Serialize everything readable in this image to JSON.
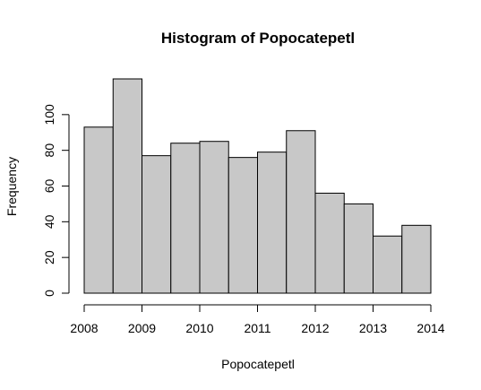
{
  "chart_data": {
    "type": "bar",
    "title": "Histogram of Popocatepetl",
    "xlabel": "Popocatepetl",
    "ylabel": "Frequency",
    "bins": [
      {
        "start": 2008.0,
        "end": 2008.5,
        "count": 93
      },
      {
        "start": 2008.5,
        "end": 2009.0,
        "count": 120
      },
      {
        "start": 2009.0,
        "end": 2009.5,
        "count": 77
      },
      {
        "start": 2009.5,
        "end": 2010.0,
        "count": 84
      },
      {
        "start": 2010.0,
        "end": 2010.5,
        "count": 85
      },
      {
        "start": 2010.5,
        "end": 2011.0,
        "count": 76
      },
      {
        "start": 2011.0,
        "end": 2011.5,
        "count": 79
      },
      {
        "start": 2011.5,
        "end": 2012.0,
        "count": 91
      },
      {
        "start": 2012.0,
        "end": 2012.5,
        "count": 56
      },
      {
        "start": 2012.5,
        "end": 2013.0,
        "count": 50
      },
      {
        "start": 2013.0,
        "end": 2013.5,
        "count": 32
      },
      {
        "start": 2013.5,
        "end": 2014.0,
        "count": 38
      }
    ],
    "x_ticks": [
      "2008",
      "2009",
      "2010",
      "2011",
      "2012",
      "2013",
      "2014"
    ],
    "y_ticks": [
      "0",
      "20",
      "40",
      "60",
      "80",
      "100"
    ],
    "xlim": [
      2008,
      2014
    ],
    "ylim": [
      0,
      120
    ],
    "grid": false,
    "bar_fill": "#c8c8c8",
    "bar_stroke": "#000000"
  }
}
